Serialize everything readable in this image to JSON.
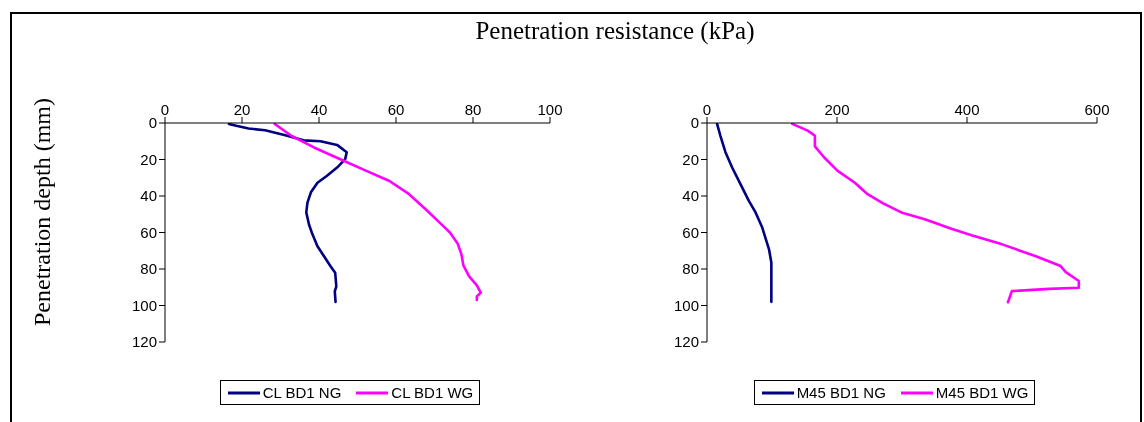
{
  "chart_data": [
    {
      "type": "line",
      "xlabel": "Penetration resistance (kPa)",
      "ylabel": "Penetration depth (mm)",
      "xlim": [
        0,
        100
      ],
      "xticks": [
        0,
        20,
        40,
        60,
        80,
        100
      ],
      "ylim": [
        120,
        0
      ],
      "yticks": [
        0,
        20,
        40,
        60,
        80,
        100,
        120
      ],
      "grid": false,
      "legend": "bottom",
      "marker": "none",
      "line_style": "solid",
      "series": [
        {
          "name": "CL BD1 NG",
          "color": "#000080",
          "x": [
            16.6,
            18.5,
            21.7,
            26,
            31,
            36,
            40.4,
            44.7,
            47.2,
            46.8,
            44.7,
            42,
            39.6,
            37.9,
            37,
            36.7,
            37.4,
            38.3,
            39.6,
            41.3,
            43,
            44.2,
            44.5,
            44.1,
            44.3
          ],
          "values": [
            0.5,
            1.5,
            3,
            4,
            6.6,
            9.5,
            10,
            12,
            16,
            19.8,
            24.4,
            29,
            32.7,
            38,
            43.6,
            49,
            55.6,
            61,
            67.5,
            73,
            78.5,
            82,
            89.5,
            92.3,
            98
          ]
        },
        {
          "name": "CL BD1 WG",
          "color": "#ff00ff",
          "x": [
            28.5,
            32.8,
            38.7,
            46.4,
            52.3,
            58.3,
            63.4,
            67.7,
            72.3,
            74,
            76,
            77,
            77.5,
            79,
            81,
            82,
            81,
            81
          ],
          "values": [
            0.5,
            7,
            13.4,
            20.7,
            26.2,
            31.8,
            39,
            47.3,
            56.5,
            60,
            66,
            72,
            78,
            84,
            89,
            93,
            95,
            97
          ]
        }
      ]
    },
    {
      "type": "line",
      "xlim": [
        0,
        600
      ],
      "xticks": [
        0,
        200,
        400,
        600
      ],
      "ylim": [
        120,
        0
      ],
      "yticks": [
        0,
        20,
        40,
        60,
        80,
        100,
        120
      ],
      "grid": false,
      "legend": "bottom",
      "marker": "none",
      "line_style": "solid",
      "series": [
        {
          "name": "M45 BD1 NG",
          "color": "#000080",
          "x": [
            15.5,
            20.6,
            28.4,
            38.7,
            51.5,
            64.4,
            74.7,
            85,
            95.4,
            99,
            99
          ],
          "values": [
            0.5,
            7,
            16,
            24.4,
            33.5,
            42.7,
            49,
            57.3,
            69.2,
            76.5,
            98
          ]
        },
        {
          "name": "M45 BD1 WG",
          "color": "#ff00ff",
          "x": [
            131,
            155,
            166,
            166,
            180.4,
            201,
            227,
            247,
            271,
            299,
            335,
            376,
            407,
            454,
            505,
            544,
            552,
            572,
            572,
            526,
            469,
            463
          ],
          "values": [
            0.5,
            4.2,
            7,
            12.8,
            18.9,
            26.2,
            32.6,
            39,
            44,
            49,
            52.7,
            57.9,
            61.5,
            66.5,
            72.9,
            78.4,
            81.7,
            86.6,
            90.3,
            90.9,
            92.1,
            98.2
          ]
        }
      ]
    }
  ]
}
